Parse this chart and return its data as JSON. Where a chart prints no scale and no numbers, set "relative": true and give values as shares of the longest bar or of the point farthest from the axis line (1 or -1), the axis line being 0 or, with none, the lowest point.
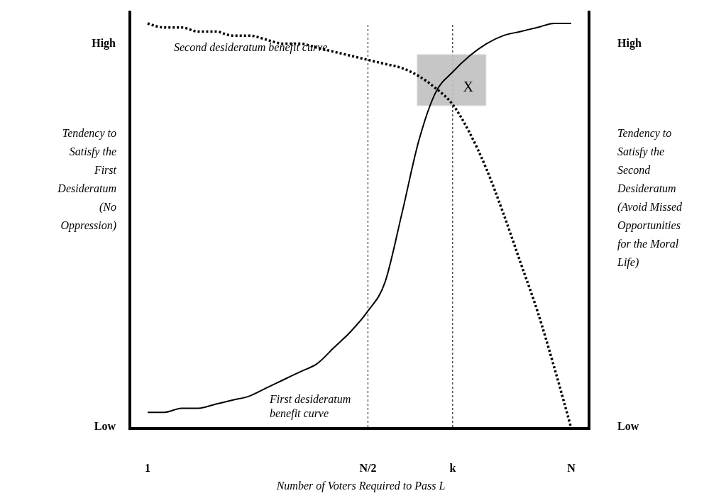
{
  "chart_data": {
    "type": "line",
    "relative": true,
    "xlabel": "Number of Voters Required to Pass L",
    "ylabel": "Tendency to Satisfy the First Desideratum (No Oppression)",
    "y2label": "Tendency to Satisfy the Second Desideratum (Avoid Missed Opportunities for the Moral Life)",
    "categories": [
      "1",
      null,
      null,
      null,
      null,
      null,
      null,
      null,
      null,
      null,
      null,
      null,
      null,
      "N/2",
      null,
      null,
      null,
      null,
      "k",
      null,
      null,
      null,
      null,
      null,
      null,
      "N"
    ],
    "grid": false,
    "series": [
      {
        "name": "First desideratum benefit curve",
        "color": "#000000",
        "line_style": "solid",
        "values": [
          0.04,
          0.04,
          0.05,
          0.05,
          0.06,
          0.07,
          0.08,
          0.1,
          0.12,
          0.14,
          0.16,
          0.2,
          0.24,
          0.29,
          0.36,
          0.53,
          0.71,
          0.83,
          0.88,
          0.92,
          0.95,
          0.97,
          0.98,
          0.99,
          1.0,
          1.0
        ]
      },
      {
        "name": "Second desideratum benefit curve",
        "color": "#000000",
        "line_style": "dotted",
        "values": [
          1.0,
          0.99,
          0.99,
          0.98,
          0.98,
          0.97,
          0.97,
          0.96,
          0.95,
          0.95,
          0.94,
          0.93,
          0.92,
          0.91,
          0.9,
          0.89,
          0.87,
          0.84,
          0.8,
          0.73,
          0.64,
          0.53,
          0.41,
          0.29,
          0.15,
          0.0
        ]
      }
    ],
    "ref_lines": [
      {
        "axis": "x",
        "value": "N/2",
        "color": "#000000",
        "line_style": "dotted"
      },
      {
        "axis": "x",
        "value": "k",
        "color": "#000000",
        "line_style": "dotted"
      }
    ],
    "annotations": [
      "High",
      "High",
      "Low",
      "Low",
      {
        "text": "X",
        "x": "k",
        "y": 0.86
      }
    ]
  }
}
